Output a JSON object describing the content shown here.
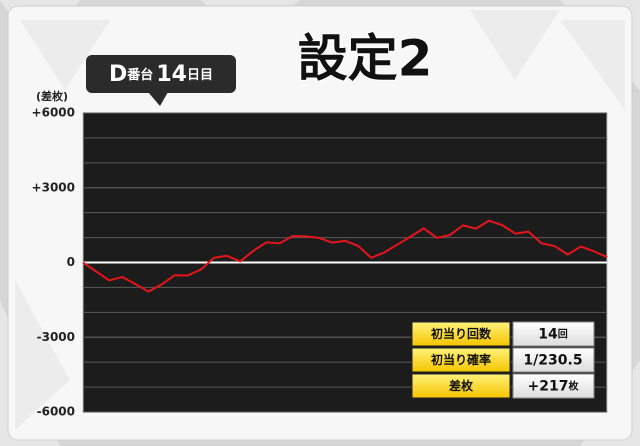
{
  "chart_data": {
    "type": "line",
    "title": "設定2",
    "y_axis_label": "(差枚)",
    "series": [
      {
        "color": "#e8141b",
        "values": [
          0,
          -360,
          -720,
          -580,
          -870,
          -1170,
          -880,
          -510,
          -520,
          -280,
          190,
          270,
          40,
          470,
          810,
          770,
          1060,
          1050,
          990,
          800,
          870,
          670,
          190,
          400,
          720,
          1040,
          1370,
          990,
          1100,
          1490,
          1360,
          1680,
          1500,
          1160,
          1240,
          770,
          660,
          320,
          640,
          450,
          217
        ]
      }
    ],
    "ylim": [
      -6000,
      6000
    ],
    "yticks": [
      {
        "value": 6000,
        "label": "+6000"
      },
      {
        "value": 3000,
        "label": "+3000"
      },
      0,
      -3000,
      -6000
    ],
    "ygrid": [
      5000,
      4000,
      3000,
      2000,
      1000,
      -1000,
      -2000,
      -3000,
      -4000,
      -5000
    ],
    "grid": true,
    "grid_color": "#5a5a5a",
    "zero_line_color": "#ffffff",
    "plot_background": "#1c1c1c"
  },
  "badge": {
    "parts": [
      "D",
      "番台",
      "14",
      "日目"
    ]
  },
  "summary_table": {
    "rows": [
      {
        "label": "初当り回数",
        "value": "14",
        "unit": "回"
      },
      {
        "label": "初当り確率",
        "value": "1/230.5",
        "unit": ""
      },
      {
        "label": "差枚",
        "value": "+217",
        "unit": "枚"
      }
    ]
  }
}
